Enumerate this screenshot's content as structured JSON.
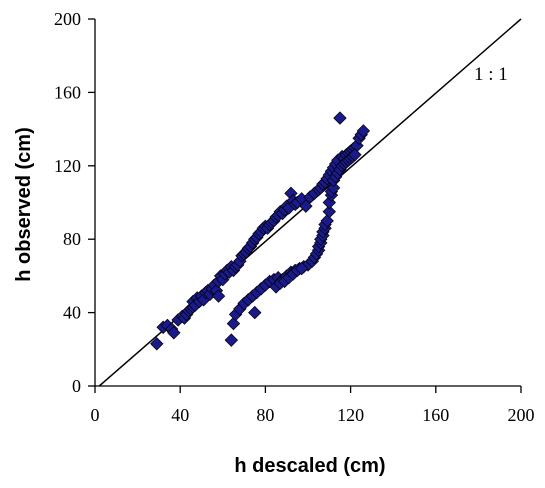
{
  "chart_data": {
    "type": "scatter",
    "xlabel": "h descaled (cm)",
    "ylabel": "h observed (cm)",
    "xlim": [
      0,
      200
    ],
    "ylim": [
      0,
      200
    ],
    "xticks": [
      "0",
      "40",
      "80",
      "120",
      "160",
      "200"
    ],
    "yticks": [
      "0",
      "40",
      "80",
      "120",
      "160",
      "200"
    ],
    "grid": false,
    "legend": "none",
    "marker": "diamond",
    "marker_color": "#1a1a8c",
    "marker_edge": "#000000",
    "reference_line": {
      "label": "1 : 1",
      "from": [
        2,
        0
      ],
      "to": [
        200,
        200
      ]
    },
    "series": [
      {
        "values": [
          [
            29,
            23
          ],
          [
            32,
            32
          ],
          [
            34,
            33
          ],
          [
            36,
            31
          ],
          [
            37,
            29
          ],
          [
            39,
            36
          ],
          [
            41,
            38
          ],
          [
            42,
            37
          ],
          [
            43,
            39
          ],
          [
            44,
            41
          ],
          [
            45,
            42
          ],
          [
            46,
            43
          ],
          [
            46,
            46
          ],
          [
            47,
            44
          ],
          [
            48,
            48
          ],
          [
            49,
            46
          ],
          [
            50,
            49
          ],
          [
            51,
            47
          ],
          [
            52,
            51
          ],
          [
            53,
            52
          ],
          [
            54,
            50
          ],
          [
            55,
            53
          ],
          [
            56,
            55
          ],
          [
            57,
            52
          ],
          [
            58,
            49
          ],
          [
            58,
            57
          ],
          [
            59,
            60
          ],
          [
            60,
            58
          ],
          [
            61,
            61
          ],
          [
            62,
            63
          ],
          [
            63,
            62
          ],
          [
            64,
            65
          ],
          [
            65,
            63
          ],
          [
            66,
            65
          ],
          [
            67,
            66
          ],
          [
            68,
            68
          ],
          [
            69,
            71
          ],
          [
            70,
            72
          ],
          [
            71,
            73
          ],
          [
            72,
            75
          ],
          [
            73,
            76
          ],
          [
            74,
            78
          ],
          [
            75,
            80
          ],
          [
            76,
            81
          ],
          [
            77,
            83
          ],
          [
            78,
            84
          ],
          [
            79,
            86
          ],
          [
            80,
            87
          ],
          [
            81,
            86
          ],
          [
            82,
            88
          ],
          [
            83,
            89
          ],
          [
            84,
            90
          ],
          [
            85,
            92
          ],
          [
            86,
            93
          ],
          [
            87,
            95
          ],
          [
            88,
            94
          ],
          [
            89,
            96
          ],
          [
            90,
            98
          ],
          [
            91,
            97
          ],
          [
            92,
            105
          ],
          [
            93,
            101
          ],
          [
            94,
            99
          ],
          [
            95,
            100
          ],
          [
            97,
            102
          ],
          [
            99,
            98
          ],
          [
            101,
            103
          ],
          [
            103,
            105
          ],
          [
            105,
            107
          ],
          [
            106,
            108
          ],
          [
            107,
            110
          ],
          [
            108,
            111
          ],
          [
            109,
            113
          ],
          [
            110,
            115
          ],
          [
            111,
            117
          ],
          [
            112,
            119
          ],
          [
            113,
            121
          ],
          [
            114,
            123
          ],
          [
            115,
            146
          ],
          [
            116,
            125
          ],
          [
            117,
            124
          ],
          [
            118,
            126
          ],
          [
            119,
            127
          ],
          [
            120,
            128
          ],
          [
            121,
            129
          ],
          [
            122,
            130
          ],
          [
            123,
            131
          ],
          [
            124,
            135
          ],
          [
            125,
            137
          ],
          [
            126,
            139
          ],
          [
            64,
            25
          ],
          [
            65,
            34
          ],
          [
            66,
            39
          ],
          [
            68,
            42
          ],
          [
            70,
            45
          ],
          [
            72,
            47
          ],
          [
            74,
            49
          ],
          [
            75,
            40
          ],
          [
            76,
            51
          ],
          [
            78,
            53
          ],
          [
            80,
            55
          ],
          [
            82,
            57
          ],
          [
            84,
            58
          ],
          [
            86,
            59
          ],
          [
            88,
            58
          ],
          [
            90,
            60
          ],
          [
            92,
            62
          ],
          [
            94,
            63
          ],
          [
            96,
            64
          ],
          [
            98,
            65
          ],
          [
            100,
            66
          ],
          [
            102,
            68
          ],
          [
            103,
            70
          ],
          [
            104,
            72
          ],
          [
            105,
            74
          ],
          [
            105,
            76
          ],
          [
            106,
            78
          ],
          [
            106,
            80
          ],
          [
            107,
            82
          ],
          [
            107,
            84
          ],
          [
            108,
            86
          ],
          [
            108,
            88
          ],
          [
            109,
            90
          ],
          [
            110,
            95
          ],
          [
            110,
            100
          ],
          [
            111,
            104
          ],
          [
            111,
            106
          ],
          [
            112,
            108
          ],
          [
            112,
            112
          ],
          [
            113,
            114
          ],
          [
            114,
            116
          ],
          [
            115,
            118
          ],
          [
            116,
            120
          ],
          [
            117,
            121
          ],
          [
            118,
            122
          ],
          [
            119,
            123
          ],
          [
            120,
            124
          ],
          [
            121,
            125
          ],
          [
            122,
            126
          ],
          [
            85,
            54
          ],
          [
            87,
            56
          ],
          [
            89,
            57
          ],
          [
            91,
            59
          ],
          [
            93,
            61
          ],
          [
            95,
            63
          ],
          [
            97,
            64
          ]
        ]
      }
    ]
  }
}
